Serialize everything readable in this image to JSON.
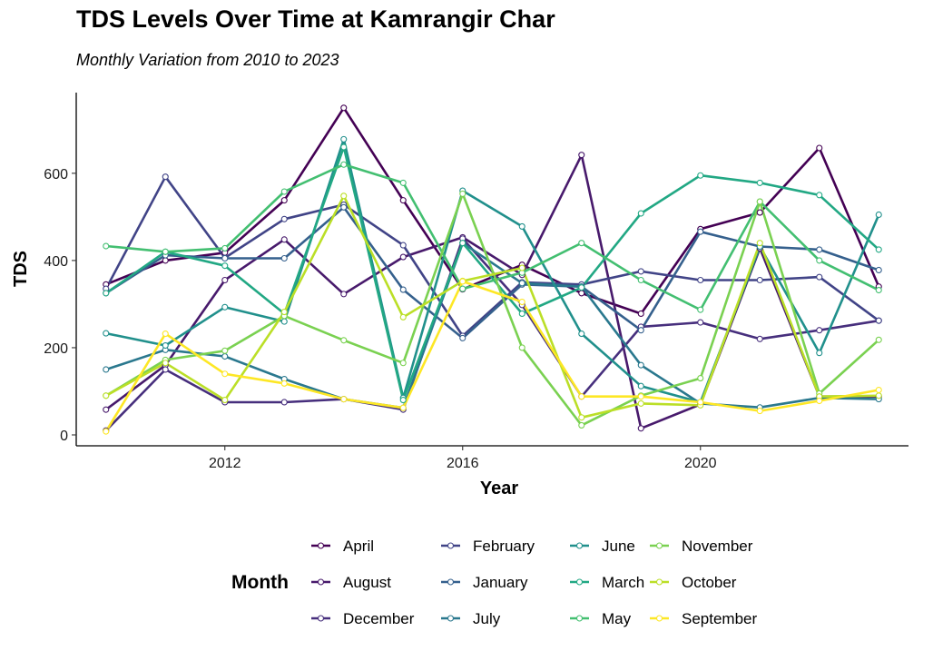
{
  "chart_data": {
    "type": "line",
    "title": "TDS Levels Over Time at Kamrangir Char",
    "subtitle": "Monthly Variation from 2010 to 2023",
    "xlabel": "Year",
    "ylabel": "TDS",
    "xlim": [
      2009.5,
      2023.5
    ],
    "ylim": [
      -25,
      785
    ],
    "x_ticks": [
      2012,
      2016,
      2020
    ],
    "y_ticks": [
      0,
      200,
      400,
      600
    ],
    "grid": false,
    "legend": {
      "title": "Month",
      "position": "bottom",
      "columns": 4
    },
    "x": [
      2010,
      2011,
      2012,
      2013,
      2014,
      2015,
      2016,
      2017,
      2018,
      2019,
      2020,
      2021,
      2022,
      2023
    ],
    "series": [
      {
        "name": "April",
        "color": "#440154",
        "values": [
          345,
          400,
          418,
          538,
          750,
          538,
          334,
          390,
          325,
          278,
          472,
          510,
          658,
          340
        ]
      },
      {
        "name": "August",
        "color": "#481A6C",
        "values": [
          58,
          160,
          355,
          448,
          323,
          408,
          453,
          367,
          642,
          15,
          70,
          428,
          88,
          88
        ]
      },
      {
        "name": "December",
        "color": "#472F7D",
        "values": [
          10,
          150,
          75,
          75,
          82,
          58,
          450,
          298,
          88,
          248,
          258,
          220,
          240,
          262
        ]
      },
      {
        "name": "February",
        "color": "#414487",
        "values": [
          335,
          592,
          406,
          495,
          528,
          435,
          227,
          350,
          345,
          375,
          355,
          355,
          362,
          262
        ]
      },
      {
        "name": "January",
        "color": "#35608D",
        "values": [
          325,
          412,
          405,
          405,
          522,
          333,
          222,
          345,
          340,
          240,
          466,
          432,
          425,
          378
        ]
      },
      {
        "name": "July",
        "color": "#2A788E",
        "values": [
          150,
          195,
          180,
          128,
          82,
          62,
          440,
          348,
          340,
          160,
          72,
          63,
          85,
          82
        ]
      },
      {
        "name": "June",
        "color": "#21908C",
        "values": [
          233,
          205,
          293,
          260,
          678,
          85,
          560,
          478,
          232,
          112,
          75,
          432,
          188,
          505
        ]
      },
      {
        "name": "March",
        "color": "#22A884",
        "values": [
          325,
          420,
          388,
          278,
          660,
          80,
          440,
          278,
          338,
          508,
          595,
          578,
          550,
          425
        ]
      },
      {
        "name": "May",
        "color": "#43BF71",
        "values": [
          433,
          420,
          428,
          558,
          620,
          578,
          335,
          372,
          440,
          355,
          287,
          535,
          400,
          332
        ]
      },
      {
        "name": "November",
        "color": "#7AD151",
        "values": [
          90,
          172,
          193,
          273,
          217,
          165,
          553,
          200,
          22,
          90,
          130,
          535,
          95,
          218
        ]
      },
      {
        "name": "October",
        "color": "#BBDF27",
        "values": [
          90,
          165,
          80,
          282,
          548,
          270,
          353,
          383,
          40,
          72,
          68,
          440,
          88,
          90
        ]
      },
      {
        "name": "September",
        "color": "#FDE725",
        "values": [
          8,
          232,
          140,
          118,
          82,
          62,
          352,
          305,
          88,
          88,
          75,
          55,
          78,
          103
        ]
      }
    ]
  }
}
